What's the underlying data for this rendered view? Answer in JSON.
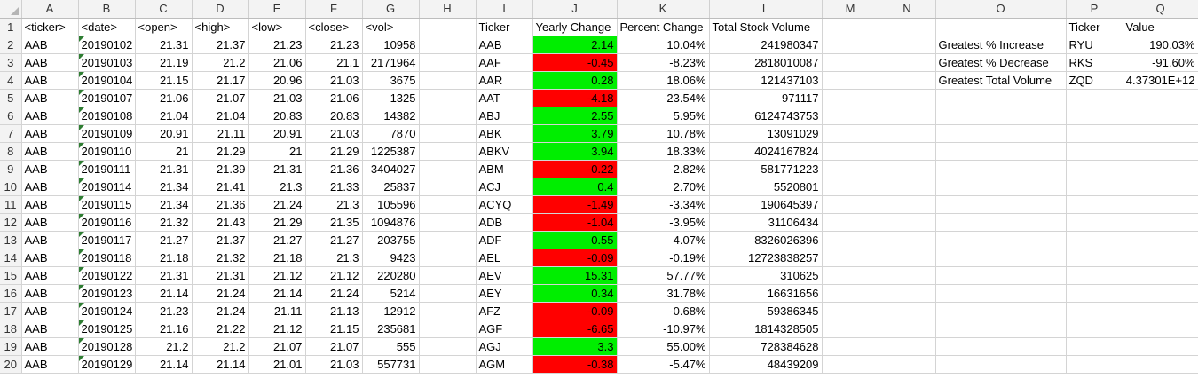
{
  "colors": {
    "positive_fill": "#00ee00",
    "negative_fill": "#ff0000",
    "header_bg": "#f3f3f3",
    "text_indicator": "#2e7d32"
  },
  "columns": [
    "A",
    "B",
    "C",
    "D",
    "E",
    "F",
    "G",
    "H",
    "I",
    "J",
    "K",
    "L",
    "M",
    "N",
    "O",
    "P",
    "Q"
  ],
  "raw_headers": [
    "<ticker>",
    "<date>",
    "<open>",
    "<high>",
    "<low>",
    "<close>",
    "<vol>"
  ],
  "summary_headers": [
    "Ticker",
    "Yearly Change",
    "Percent Change",
    "Total Stock Volume"
  ],
  "greatest_headers": [
    "Ticker",
    "Value"
  ],
  "raw_rows": [
    [
      "AAB",
      "20190102",
      "21.31",
      "21.37",
      "21.23",
      "21.23",
      "10958"
    ],
    [
      "AAB",
      "20190103",
      "21.19",
      "21.2",
      "21.06",
      "21.1",
      "2171964"
    ],
    [
      "AAB",
      "20190104",
      "21.15",
      "21.17",
      "20.96",
      "21.03",
      "3675"
    ],
    [
      "AAB",
      "20190107",
      "21.06",
      "21.07",
      "21.03",
      "21.06",
      "1325"
    ],
    [
      "AAB",
      "20190108",
      "21.04",
      "21.04",
      "20.83",
      "20.83",
      "14382"
    ],
    [
      "AAB",
      "20190109",
      "20.91",
      "21.11",
      "20.91",
      "21.03",
      "7870"
    ],
    [
      "AAB",
      "20190110",
      "21",
      "21.29",
      "21",
      "21.29",
      "1225387"
    ],
    [
      "AAB",
      "20190111",
      "21.31",
      "21.39",
      "21.31",
      "21.36",
      "3404027"
    ],
    [
      "AAB",
      "20190114",
      "21.34",
      "21.41",
      "21.3",
      "21.33",
      "25837"
    ],
    [
      "AAB",
      "20190115",
      "21.34",
      "21.36",
      "21.24",
      "21.3",
      "105596"
    ],
    [
      "AAB",
      "20190116",
      "21.32",
      "21.43",
      "21.29",
      "21.35",
      "1094876"
    ],
    [
      "AAB",
      "20190117",
      "21.27",
      "21.37",
      "21.27",
      "21.27",
      "203755"
    ],
    [
      "AAB",
      "20190118",
      "21.18",
      "21.32",
      "21.18",
      "21.3",
      "9423"
    ],
    [
      "AAB",
      "20190122",
      "21.31",
      "21.31",
      "21.12",
      "21.12",
      "220280"
    ],
    [
      "AAB",
      "20190123",
      "21.14",
      "21.24",
      "21.14",
      "21.24",
      "5214"
    ],
    [
      "AAB",
      "20190124",
      "21.23",
      "21.24",
      "21.11",
      "21.13",
      "12912"
    ],
    [
      "AAB",
      "20190125",
      "21.16",
      "21.22",
      "21.12",
      "21.15",
      "235681"
    ],
    [
      "AAB",
      "20190128",
      "21.2",
      "21.2",
      "21.07",
      "21.07",
      "555"
    ],
    [
      "AAB",
      "20190129",
      "21.14",
      "21.14",
      "21.01",
      "21.03",
      "557731"
    ]
  ],
  "summary_rows": [
    {
      "ticker": "AAB",
      "change": "2.14",
      "pct": "10.04%",
      "volume": "241980347",
      "sign": "pos"
    },
    {
      "ticker": "AAF",
      "change": "-0.45",
      "pct": "-8.23%",
      "volume": "2818010087",
      "sign": "neg"
    },
    {
      "ticker": "AAR",
      "change": "0.28",
      "pct": "18.06%",
      "volume": "121437103",
      "sign": "pos"
    },
    {
      "ticker": "AAT",
      "change": "-4.18",
      "pct": "-23.54%",
      "volume": "971117",
      "sign": "neg"
    },
    {
      "ticker": "ABJ",
      "change": "2.55",
      "pct": "5.95%",
      "volume": "6124743753",
      "sign": "pos"
    },
    {
      "ticker": "ABK",
      "change": "3.79",
      "pct": "10.78%",
      "volume": "13091029",
      "sign": "pos"
    },
    {
      "ticker": "ABKV",
      "change": "3.94",
      "pct": "18.33%",
      "volume": "4024167824",
      "sign": "pos"
    },
    {
      "ticker": "ABM",
      "change": "-0.22",
      "pct": "-2.82%",
      "volume": "581771223",
      "sign": "neg"
    },
    {
      "ticker": "ACJ",
      "change": "0.4",
      "pct": "2.70%",
      "volume": "5520801",
      "sign": "pos"
    },
    {
      "ticker": "ACYQ",
      "change": "-1.49",
      "pct": "-3.34%",
      "volume": "190645397",
      "sign": "neg"
    },
    {
      "ticker": "ADB",
      "change": "-1.04",
      "pct": "-3.95%",
      "volume": "31106434",
      "sign": "neg"
    },
    {
      "ticker": "ADF",
      "change": "0.55",
      "pct": "4.07%",
      "volume": "8326026396",
      "sign": "pos"
    },
    {
      "ticker": "AEL",
      "change": "-0.09",
      "pct": "-0.19%",
      "volume": "12723838257",
      "sign": "neg"
    },
    {
      "ticker": "AEV",
      "change": "15.31",
      "pct": "57.77%",
      "volume": "310625",
      "sign": "pos"
    },
    {
      "ticker": "AEY",
      "change": "0.34",
      "pct": "31.78%",
      "volume": "16631656",
      "sign": "pos"
    },
    {
      "ticker": "AFZ",
      "change": "-0.09",
      "pct": "-0.68%",
      "volume": "59386345",
      "sign": "neg"
    },
    {
      "ticker": "AGF",
      "change": "-6.65",
      "pct": "-10.97%",
      "volume": "1814328505",
      "sign": "neg"
    },
    {
      "ticker": "AGJ",
      "change": "3.3",
      "pct": "55.00%",
      "volume": "728384628",
      "sign": "pos"
    },
    {
      "ticker": "AGM",
      "change": "-0.38",
      "pct": "-5.47%",
      "volume": "48439209",
      "sign": "neg"
    }
  ],
  "greatest_rows": [
    {
      "label": "Greatest % Increase",
      "ticker": "RYU",
      "value": "190.03%"
    },
    {
      "label": "Greatest % Decrease",
      "ticker": "RKS",
      "value": "-91.60%"
    },
    {
      "label": "Greatest Total Volume",
      "ticker": "ZQD",
      "value": "4.37301E+12"
    }
  ]
}
